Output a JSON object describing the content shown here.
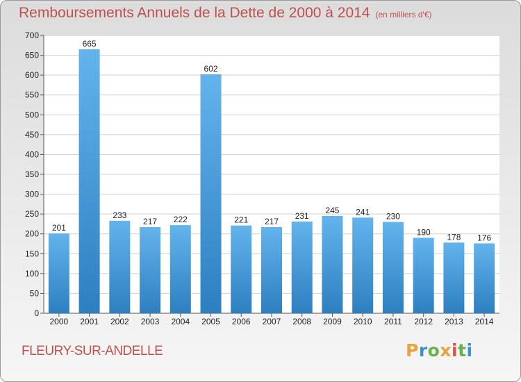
{
  "chart_data": {
    "type": "bar",
    "title": "Remboursements Annuels de la Dette de 2000 à 2014",
    "subtitle": "(en milliers d'€)",
    "categories": [
      "2000",
      "2001",
      "2002",
      "2003",
      "2004",
      "2005",
      "2006",
      "2007",
      "2008",
      "2009",
      "2010",
      "2011",
      "2012",
      "2013",
      "2014"
    ],
    "values": [
      201,
      665,
      233,
      217,
      222,
      602,
      221,
      217,
      231,
      245,
      241,
      230,
      190,
      178,
      176
    ],
    "ylim": [
      0,
      700
    ],
    "yticks": [
      0,
      50,
      100,
      150,
      200,
      250,
      300,
      350,
      400,
      450,
      500,
      550,
      600,
      650,
      700
    ],
    "grid": true,
    "colors": {
      "bar_light": "#63b3ec",
      "bar_dark": "#2d7fc0",
      "title": "#c0504d"
    }
  },
  "commune": "FLEURY-SUR-ANDELLE",
  "logo": {
    "letters": [
      "P",
      "r",
      "o",
      "x",
      "i",
      "t",
      "i"
    ],
    "colors": [
      "#e8a33c",
      "#3f8fd0",
      "#6ab04c",
      "#e8a33c",
      "#d9534f",
      "#6ab04c",
      "#3f8fd0"
    ]
  }
}
